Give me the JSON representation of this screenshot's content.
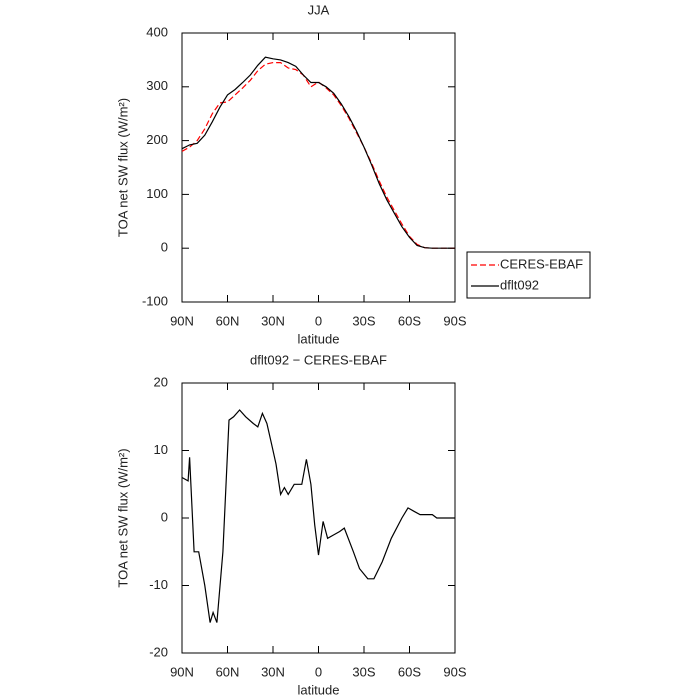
{
  "chart_data": [
    {
      "type": "line",
      "title": "JJA",
      "xlabel": "latitude",
      "ylabel": "TOA net SW flux (W/m²)",
      "x": [
        90,
        85,
        80,
        75,
        70,
        65,
        60,
        55,
        50,
        45,
        40,
        35,
        30,
        25,
        20,
        15,
        10,
        5,
        0,
        -5,
        -10,
        -15,
        -20,
        -25,
        -30,
        -35,
        -40,
        -45,
        -50,
        -55,
        -60,
        -65,
        -70,
        -75,
        -80,
        -85,
        -90
      ],
      "series": [
        {
          "name": "CERES-EBAF",
          "color": "#ff0000",
          "line_style": "dashed",
          "values": [
            180,
            188,
            200,
            222,
            250,
            270,
            272,
            285,
            298,
            312,
            330,
            342,
            345,
            345,
            335,
            332,
            322,
            300,
            309,
            298,
            285,
            265,
            242,
            215,
            188,
            158,
            125,
            95,
            70,
            45,
            22,
            7,
            1,
            0,
            0,
            0,
            0
          ]
        },
        {
          "name": "dflt092",
          "color": "#000000",
          "line_style": "solid",
          "values": [
            185,
            192,
            195,
            210,
            235,
            262,
            285,
            295,
            308,
            322,
            340,
            355,
            352,
            350,
            345,
            338,
            322,
            308,
            308,
            300,
            288,
            268,
            245,
            218,
            188,
            155,
            120,
            90,
            65,
            40,
            20,
            5,
            1,
            0,
            0,
            0,
            0
          ]
        }
      ],
      "xlim": [
        90,
        -90
      ],
      "xticks": [
        {
          "value": 90,
          "label": "90N"
        },
        {
          "value": 60,
          "label": "60N"
        },
        {
          "value": 30,
          "label": "30N"
        },
        0,
        {
          "value": -30,
          "label": "30S"
        },
        {
          "value": -60,
          "label": "60S"
        },
        {
          "value": -90,
          "label": "90S"
        }
      ],
      "ylim": [
        -100,
        400
      ],
      "yticks": [
        -100,
        0,
        100,
        200,
        300,
        400
      ],
      "legend": "outside right"
    },
    {
      "type": "line",
      "title": "dflt092 − CERES-EBAF",
      "xlabel": "latitude",
      "ylabel": "TOA net SW flux (W/m²)",
      "x": [
        90,
        86,
        85,
        82,
        79,
        75,
        71.5,
        69.5,
        67,
        63,
        59,
        56,
        52,
        48,
        43,
        40,
        37,
        34,
        31,
        28,
        25,
        22.5,
        20,
        16,
        11,
        8,
        5,
        2.5,
        0,
        -3,
        -6,
        -10,
        -14,
        -17,
        -23,
        -27,
        -32.5,
        -36.5,
        -42,
        -48,
        -55,
        -59,
        -63,
        -67,
        -75,
        -78,
        -90
      ],
      "series": [
        {
          "name": "dflt092 − CERES-EBAF",
          "color": "#000000",
          "line_style": "solid",
          "values": [
            6,
            5.5,
            9,
            -5,
            -5,
            -10,
            -15.5,
            -14,
            -15.5,
            -5,
            14.5,
            15,
            16,
            15,
            14,
            13.5,
            15.5,
            14,
            11,
            8,
            3.5,
            4.5,
            3.5,
            5,
            5,
            8.7,
            5,
            -1,
            -5.5,
            -0.5,
            -3,
            -2.5,
            -2,
            -1.5,
            -5,
            -7.5,
            -9,
            -9,
            -6.5,
            -3,
            0,
            1.5,
            1,
            0.5,
            0.5,
            0,
            0
          ]
        }
      ],
      "xlim": [
        90,
        -90
      ],
      "xticks": [
        {
          "value": 90,
          "label": "90N"
        },
        {
          "value": 60,
          "label": "60N"
        },
        {
          "value": 30,
          "label": "30N"
        },
        0,
        {
          "value": -30,
          "label": "30S"
        },
        {
          "value": -60,
          "label": "60S"
        },
        {
          "value": -90,
          "label": "90S"
        }
      ],
      "ylim": [
        -20,
        20
      ],
      "yticks": [
        -20,
        -10,
        0,
        10,
        20
      ]
    }
  ]
}
